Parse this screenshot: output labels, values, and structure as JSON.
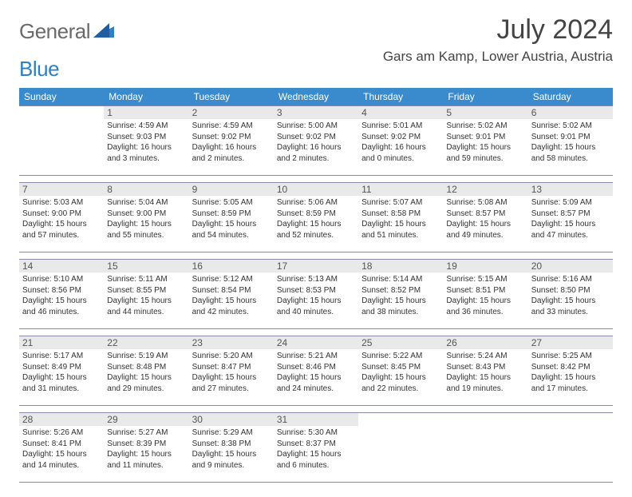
{
  "brand": {
    "general": "General",
    "blue": "Blue"
  },
  "title": "July 2024",
  "location": "Gars am Kamp, Lower Austria, Austria",
  "colors": {
    "header_bg": "#3a8bce",
    "header_text": "#ffffff",
    "daynum_bg": "#e9e9e9",
    "cell_border": "#8888aa",
    "logo_gray": "#6a6a6a",
    "logo_blue": "#2f7fc1"
  },
  "weekdays": [
    "Sunday",
    "Monday",
    "Tuesday",
    "Wednesday",
    "Thursday",
    "Friday",
    "Saturday"
  ],
  "weeks": [
    [
      null,
      {
        "n": "1",
        "sr": "Sunrise: 4:59 AM",
        "ss": "Sunset: 9:03 PM",
        "d1": "Daylight: 16 hours",
        "d2": "and 3 minutes."
      },
      {
        "n": "2",
        "sr": "Sunrise: 4:59 AM",
        "ss": "Sunset: 9:02 PM",
        "d1": "Daylight: 16 hours",
        "d2": "and 2 minutes."
      },
      {
        "n": "3",
        "sr": "Sunrise: 5:00 AM",
        "ss": "Sunset: 9:02 PM",
        "d1": "Daylight: 16 hours",
        "d2": "and 2 minutes."
      },
      {
        "n": "4",
        "sr": "Sunrise: 5:01 AM",
        "ss": "Sunset: 9:02 PM",
        "d1": "Daylight: 16 hours",
        "d2": "and 0 minutes."
      },
      {
        "n": "5",
        "sr": "Sunrise: 5:02 AM",
        "ss": "Sunset: 9:01 PM",
        "d1": "Daylight: 15 hours",
        "d2": "and 59 minutes."
      },
      {
        "n": "6",
        "sr": "Sunrise: 5:02 AM",
        "ss": "Sunset: 9:01 PM",
        "d1": "Daylight: 15 hours",
        "d2": "and 58 minutes."
      }
    ],
    [
      {
        "n": "7",
        "sr": "Sunrise: 5:03 AM",
        "ss": "Sunset: 9:00 PM",
        "d1": "Daylight: 15 hours",
        "d2": "and 57 minutes."
      },
      {
        "n": "8",
        "sr": "Sunrise: 5:04 AM",
        "ss": "Sunset: 9:00 PM",
        "d1": "Daylight: 15 hours",
        "d2": "and 55 minutes."
      },
      {
        "n": "9",
        "sr": "Sunrise: 5:05 AM",
        "ss": "Sunset: 8:59 PM",
        "d1": "Daylight: 15 hours",
        "d2": "and 54 minutes."
      },
      {
        "n": "10",
        "sr": "Sunrise: 5:06 AM",
        "ss": "Sunset: 8:59 PM",
        "d1": "Daylight: 15 hours",
        "d2": "and 52 minutes."
      },
      {
        "n": "11",
        "sr": "Sunrise: 5:07 AM",
        "ss": "Sunset: 8:58 PM",
        "d1": "Daylight: 15 hours",
        "d2": "and 51 minutes."
      },
      {
        "n": "12",
        "sr": "Sunrise: 5:08 AM",
        "ss": "Sunset: 8:57 PM",
        "d1": "Daylight: 15 hours",
        "d2": "and 49 minutes."
      },
      {
        "n": "13",
        "sr": "Sunrise: 5:09 AM",
        "ss": "Sunset: 8:57 PM",
        "d1": "Daylight: 15 hours",
        "d2": "and 47 minutes."
      }
    ],
    [
      {
        "n": "14",
        "sr": "Sunrise: 5:10 AM",
        "ss": "Sunset: 8:56 PM",
        "d1": "Daylight: 15 hours",
        "d2": "and 46 minutes."
      },
      {
        "n": "15",
        "sr": "Sunrise: 5:11 AM",
        "ss": "Sunset: 8:55 PM",
        "d1": "Daylight: 15 hours",
        "d2": "and 44 minutes."
      },
      {
        "n": "16",
        "sr": "Sunrise: 5:12 AM",
        "ss": "Sunset: 8:54 PM",
        "d1": "Daylight: 15 hours",
        "d2": "and 42 minutes."
      },
      {
        "n": "17",
        "sr": "Sunrise: 5:13 AM",
        "ss": "Sunset: 8:53 PM",
        "d1": "Daylight: 15 hours",
        "d2": "and 40 minutes."
      },
      {
        "n": "18",
        "sr": "Sunrise: 5:14 AM",
        "ss": "Sunset: 8:52 PM",
        "d1": "Daylight: 15 hours",
        "d2": "and 38 minutes."
      },
      {
        "n": "19",
        "sr": "Sunrise: 5:15 AM",
        "ss": "Sunset: 8:51 PM",
        "d1": "Daylight: 15 hours",
        "d2": "and 36 minutes."
      },
      {
        "n": "20",
        "sr": "Sunrise: 5:16 AM",
        "ss": "Sunset: 8:50 PM",
        "d1": "Daylight: 15 hours",
        "d2": "and 33 minutes."
      }
    ],
    [
      {
        "n": "21",
        "sr": "Sunrise: 5:17 AM",
        "ss": "Sunset: 8:49 PM",
        "d1": "Daylight: 15 hours",
        "d2": "and 31 minutes."
      },
      {
        "n": "22",
        "sr": "Sunrise: 5:19 AM",
        "ss": "Sunset: 8:48 PM",
        "d1": "Daylight: 15 hours",
        "d2": "and 29 minutes."
      },
      {
        "n": "23",
        "sr": "Sunrise: 5:20 AM",
        "ss": "Sunset: 8:47 PM",
        "d1": "Daylight: 15 hours",
        "d2": "and 27 minutes."
      },
      {
        "n": "24",
        "sr": "Sunrise: 5:21 AM",
        "ss": "Sunset: 8:46 PM",
        "d1": "Daylight: 15 hours",
        "d2": "and 24 minutes."
      },
      {
        "n": "25",
        "sr": "Sunrise: 5:22 AM",
        "ss": "Sunset: 8:45 PM",
        "d1": "Daylight: 15 hours",
        "d2": "and 22 minutes."
      },
      {
        "n": "26",
        "sr": "Sunrise: 5:24 AM",
        "ss": "Sunset: 8:43 PM",
        "d1": "Daylight: 15 hours",
        "d2": "and 19 minutes."
      },
      {
        "n": "27",
        "sr": "Sunrise: 5:25 AM",
        "ss": "Sunset: 8:42 PM",
        "d1": "Daylight: 15 hours",
        "d2": "and 17 minutes."
      }
    ],
    [
      {
        "n": "28",
        "sr": "Sunrise: 5:26 AM",
        "ss": "Sunset: 8:41 PM",
        "d1": "Daylight: 15 hours",
        "d2": "and 14 minutes."
      },
      {
        "n": "29",
        "sr": "Sunrise: 5:27 AM",
        "ss": "Sunset: 8:39 PM",
        "d1": "Daylight: 15 hours",
        "d2": "and 11 minutes."
      },
      {
        "n": "30",
        "sr": "Sunrise: 5:29 AM",
        "ss": "Sunset: 8:38 PM",
        "d1": "Daylight: 15 hours",
        "d2": "and 9 minutes."
      },
      {
        "n": "31",
        "sr": "Sunrise: 5:30 AM",
        "ss": "Sunset: 8:37 PM",
        "d1": "Daylight: 15 hours",
        "d2": "and 6 minutes."
      },
      null,
      null,
      null
    ]
  ]
}
